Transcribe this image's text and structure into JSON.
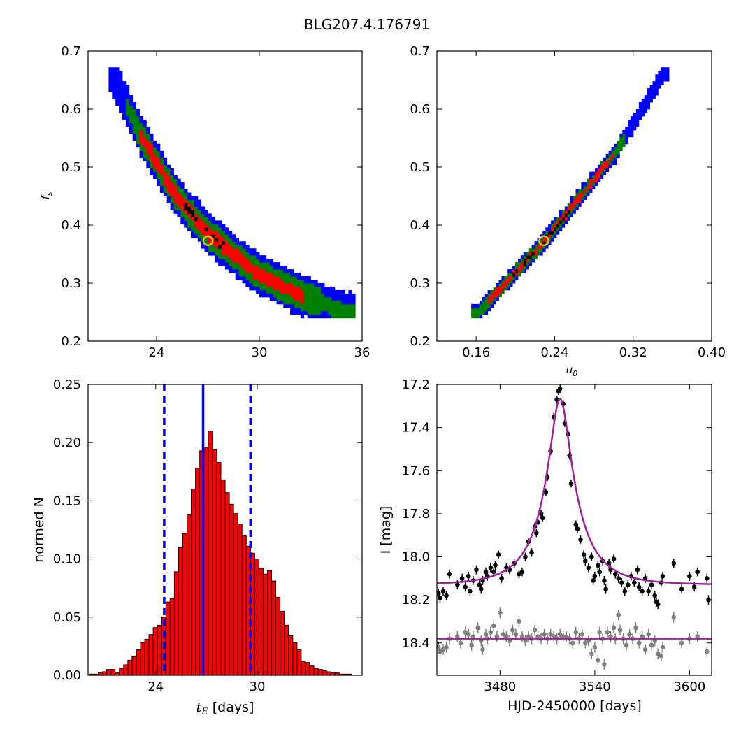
{
  "title": "BLG207.4.176791",
  "chart_data": [
    {
      "id": "panel-fs-te",
      "type": "heatmap",
      "description": "posterior density of f_s versus t_E; contours black (densest), red, green, blue (outermost)",
      "xlabel": "",
      "ylabel": "f_s",
      "xlim": [
        20,
        36
      ],
      "ylim": [
        0.2,
        0.7
      ],
      "xticks": [
        "24",
        "30",
        "36"
      ],
      "yticks": [
        "0.2",
        "0.3",
        "0.4",
        "0.5",
        "0.6",
        "0.7"
      ],
      "colors": {
        "core": "#000000",
        "sigma1": "#ff0000",
        "sigma2": "#008000",
        "sigma3": "#0000ff"
      },
      "ridge": [
        [
          21.3,
          0.66
        ],
        [
          23.0,
          0.55
        ],
        [
          25.0,
          0.45
        ],
        [
          27.0,
          0.38
        ],
        [
          29.5,
          0.32
        ],
        [
          32.0,
          0.28
        ],
        [
          35.0,
          0.245
        ]
      ],
      "band_halfwidths_fs": {
        "sigma3": 0.035,
        "sigma2": 0.024,
        "sigma1": 0.012
      },
      "best_fit": {
        "x": 27.0,
        "y": 0.373
      }
    },
    {
      "id": "panel-fs-u0",
      "type": "heatmap",
      "description": "posterior density of f_s versus u_0",
      "xlabel": "u_0",
      "ylabel": "",
      "xlim": [
        0.12,
        0.4
      ],
      "ylim": [
        0.2,
        0.7
      ],
      "xticks": [
        "0.16",
        "0.24",
        "0.32",
        "0.40"
      ],
      "yticks": [
        "0.2",
        "0.3",
        "0.4",
        "0.5",
        "0.6",
        "0.7"
      ],
      "ridge": [
        [
          0.16,
          0.245
        ],
        [
          0.23,
          0.373
        ],
        [
          0.3,
          0.52
        ],
        [
          0.35,
          0.66
        ]
      ],
      "best_fit": {
        "x": 0.229,
        "y": 0.373
      }
    },
    {
      "id": "panel-histogram",
      "type": "bar",
      "description": "normalized histogram of t_E samples",
      "xlabel": "t_E [days]",
      "ylabel": "normed N",
      "xlim": [
        20,
        36.2
      ],
      "ylim": [
        0.0,
        0.25
      ],
      "xticks": [
        "24",
        "30"
      ],
      "yticks": [
        "0.00",
        "0.05",
        "0.10",
        "0.15",
        "0.20",
        "0.25"
      ],
      "bin_start": 20.1,
      "bin_width": 0.25,
      "values": [
        0.001,
        0.001,
        0.002,
        0.003,
        0.005,
        0.005,
        0.002,
        0.006,
        0.009,
        0.013,
        0.016,
        0.022,
        0.028,
        0.031,
        0.035,
        0.041,
        0.043,
        0.05,
        0.063,
        0.066,
        0.089,
        0.11,
        0.122,
        0.138,
        0.16,
        0.178,
        0.193,
        0.196,
        0.21,
        0.194,
        0.183,
        0.168,
        0.157,
        0.147,
        0.139,
        0.13,
        0.12,
        0.111,
        0.105,
        0.1,
        0.092,
        0.087,
        0.09,
        0.081,
        0.067,
        0.055,
        0.043,
        0.034,
        0.028,
        0.022,
        0.012,
        0.011,
        0.008,
        0.006,
        0.005,
        0.004,
        0.003,
        0.002,
        0.002,
        0.001,
        0.001,
        0.001
      ],
      "bar_color": "#ff0000",
      "median": 26.8,
      "lower": 24.5,
      "upper": 29.6
    },
    {
      "id": "panel-lightcurve",
      "type": "scatter",
      "description": "I-band light curve (black) with model (purple); residuals offset (grey) with flat model",
      "xlabel": "HJD-2450000 [days]",
      "ylabel": "I [mag]",
      "xlim": [
        3440,
        3614
      ],
      "ylim": [
        18.55,
        17.2
      ],
      "xticks": [
        "3480",
        "3540",
        "3600"
      ],
      "yticks": [
        "17.2",
        "17.4",
        "17.6",
        "17.8",
        "18.0",
        "18.2",
        "18.4"
      ],
      "model": {
        "t0": 3518,
        "u0": 0.24,
        "tE": 26.0,
        "I_base": 18.13,
        "fs": 0.373
      },
      "model_color": "#a020a0",
      "residual_offset": 18.38,
      "data": [
        [
          3441,
          18.17
        ],
        [
          3442,
          18.19
        ],
        [
          3444,
          18.16
        ],
        [
          3446,
          18.18
        ],
        [
          3448,
          18.08
        ],
        [
          3453,
          18.13
        ],
        [
          3456,
          18.1
        ],
        [
          3458,
          18.14
        ],
        [
          3460,
          18.09
        ],
        [
          3461,
          18.16
        ],
        [
          3463,
          18.11
        ],
        [
          3465,
          18.06
        ],
        [
          3467,
          18.13
        ],
        [
          3468,
          18.15
        ],
        [
          3469,
          18.11
        ],
        [
          3471,
          18.07
        ],
        [
          3472,
          18.09
        ],
        [
          3474,
          18.05
        ],
        [
          3476,
          18.07
        ],
        [
          3477,
          18.04
        ],
        [
          3479,
          17.99
        ],
        [
          3481,
          18.1
        ],
        [
          3484,
          18.05
        ],
        [
          3486,
          18.06
        ],
        [
          3489,
          18.03
        ],
        [
          3492,
          18.08
        ],
        [
          3494,
          18.07
        ],
        [
          3496,
          18.0
        ],
        [
          3498,
          17.93
        ],
        [
          3500,
          17.98
        ],
        [
          3502,
          17.86
        ],
        [
          3503,
          17.89
        ],
        [
          3504,
          17.84
        ],
        [
          3506,
          17.8
        ],
        [
          3507,
          17.82
        ],
        [
          3509,
          17.7
        ],
        [
          3510,
          17.63
        ],
        [
          3512,
          17.51
        ],
        [
          3514,
          17.35
        ],
        [
          3516,
          17.27
        ],
        [
          3517,
          17.23
        ],
        [
          3518,
          17.22
        ],
        [
          3520,
          17.29
        ],
        [
          3521,
          17.38
        ],
        [
          3523,
          17.43
        ],
        [
          3524,
          17.53
        ],
        [
          3525,
          17.66
        ],
        [
          3528,
          17.85
        ],
        [
          3529,
          17.87
        ],
        [
          3531,
          17.92
        ],
        [
          3533,
          17.99
        ],
        [
          3534,
          18.02
        ],
        [
          3536,
          18.05
        ],
        [
          3538,
          18.0
        ],
        [
          3539,
          18.11
        ],
        [
          3540,
          18.09
        ],
        [
          3542,
          18.04
        ],
        [
          3543,
          18.07
        ],
        [
          3545,
          18.02
        ],
        [
          3546,
          18.11
        ],
        [
          3547,
          18.15
        ],
        [
          3549,
          18.03
        ],
        [
          3550,
          18.06
        ],
        [
          3552,
          18.01
        ],
        [
          3553,
          18.08
        ],
        [
          3555,
          18.1
        ],
        [
          3557,
          18.12
        ],
        [
          3559,
          18.16
        ],
        [
          3561,
          18.13
        ],
        [
          3563,
          18.09
        ],
        [
          3565,
          18.12
        ],
        [
          3567,
          18.06
        ],
        [
          3568,
          18.14
        ],
        [
          3570,
          18.16
        ],
        [
          3572,
          18.1
        ],
        [
          3574,
          18.16
        ],
        [
          3576,
          18.13
        ],
        [
          3578,
          18.18
        ],
        [
          3579,
          18.21
        ],
        [
          3580,
          18.22
        ],
        [
          3582,
          18.12
        ],
        [
          3583,
          18.09
        ],
        [
          3590,
          18.03
        ],
        [
          3595,
          18.15
        ],
        [
          3600,
          18.09
        ],
        [
          3603,
          18.14
        ],
        [
          3605,
          18.07
        ],
        [
          3611,
          18.1
        ],
        [
          3612,
          18.2
        ]
      ],
      "residuals": [
        [
          3441,
          18.42
        ],
        [
          3442,
          18.44
        ],
        [
          3444,
          18.43
        ],
        [
          3446,
          18.42
        ],
        [
          3448,
          18.38
        ],
        [
          3453,
          18.37
        ],
        [
          3455,
          18.4
        ],
        [
          3458,
          18.35
        ],
        [
          3460,
          18.36
        ],
        [
          3462,
          18.41
        ],
        [
          3463,
          18.37
        ],
        [
          3466,
          18.33
        ],
        [
          3468,
          18.39
        ],
        [
          3469,
          18.43
        ],
        [
          3471,
          18.36
        ],
        [
          3472,
          18.38
        ],
        [
          3474,
          18.35
        ],
        [
          3476,
          18.32
        ],
        [
          3478,
          18.37
        ],
        [
          3480,
          18.26
        ],
        [
          3482,
          18.36
        ],
        [
          3484,
          18.37
        ],
        [
          3486,
          18.39
        ],
        [
          3488,
          18.34
        ],
        [
          3490,
          18.36
        ],
        [
          3492,
          18.3
        ],
        [
          3494,
          18.37
        ],
        [
          3496,
          18.39
        ],
        [
          3498,
          18.37
        ],
        [
          3500,
          18.38
        ],
        [
          3502,
          18.34
        ],
        [
          3504,
          18.37
        ],
        [
          3506,
          18.38
        ],
        [
          3508,
          18.36
        ],
        [
          3510,
          18.38
        ],
        [
          3512,
          18.36
        ],
        [
          3514,
          18.37
        ],
        [
          3516,
          18.38
        ],
        [
          3518,
          18.36
        ],
        [
          3520,
          18.37
        ],
        [
          3522,
          18.37
        ],
        [
          3524,
          18.38
        ],
        [
          3526,
          18.4
        ],
        [
          3528,
          18.35
        ],
        [
          3530,
          18.38
        ],
        [
          3532,
          18.36
        ],
        [
          3534,
          18.4
        ],
        [
          3536,
          18.39
        ],
        [
          3538,
          18.45
        ],
        [
          3540,
          18.42
        ],
        [
          3542,
          18.48
        ],
        [
          3543,
          18.35
        ],
        [
          3545,
          18.38
        ],
        [
          3546,
          18.5
        ],
        [
          3548,
          18.35
        ],
        [
          3550,
          18.37
        ],
        [
          3552,
          18.33
        ],
        [
          3553,
          18.38
        ],
        [
          3555,
          18.27
        ],
        [
          3556,
          18.34
        ],
        [
          3558,
          18.38
        ],
        [
          3560,
          18.41
        ],
        [
          3562,
          18.36
        ],
        [
          3564,
          18.38
        ],
        [
          3566,
          18.33
        ],
        [
          3568,
          18.4
        ],
        [
          3570,
          18.37
        ],
        [
          3572,
          18.43
        ],
        [
          3574,
          18.36
        ],
        [
          3576,
          18.41
        ],
        [
          3578,
          18.39
        ],
        [
          3580,
          18.45
        ],
        [
          3582,
          18.46
        ],
        [
          3583,
          18.42
        ],
        [
          3590,
          18.28
        ],
        [
          3595,
          18.4
        ],
        [
          3600,
          18.38
        ],
        [
          3605,
          18.37
        ],
        [
          3611,
          18.44
        ]
      ]
    }
  ]
}
